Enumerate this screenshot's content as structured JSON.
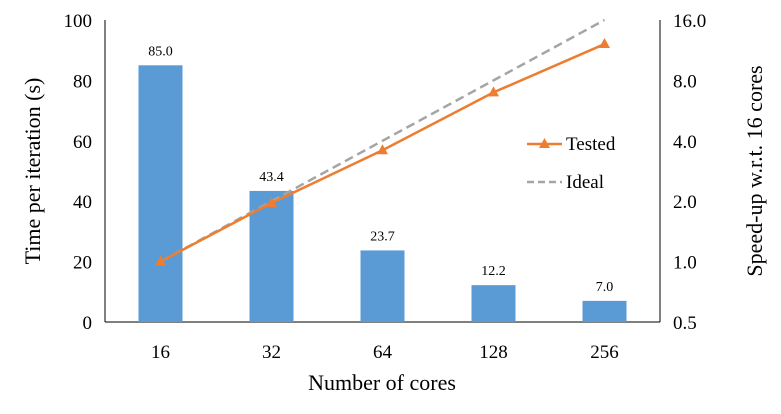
{
  "chart_data": {
    "type": "bar+line",
    "categories": [
      "16",
      "32",
      "64",
      "128",
      "256"
    ],
    "xlabel": "Number of cores",
    "ylabel_left": "Time per iteration (s)",
    "ylabel_right": "Speed-up w.r.t. 16 cores",
    "ylim_left": [
      0,
      100
    ],
    "left_ticks": [
      "0",
      "20",
      "40",
      "60",
      "80",
      "100"
    ],
    "ylim_right": [
      0.5,
      16.0
    ],
    "right_scale": "log2",
    "right_ticks": [
      "0.5",
      "1.0",
      "2.0",
      "4.0",
      "8.0",
      "16.0"
    ],
    "bars": {
      "values": [
        85.0,
        43.4,
        23.7,
        12.2,
        7.0
      ],
      "labels": [
        "85.0",
        "43.4",
        "23.7",
        "12.2",
        "7.0"
      ],
      "color": "#5b9bd5"
    },
    "series": [
      {
        "name": "Tested",
        "values": [
          1.0,
          1.96,
          3.59,
          6.97,
          12.14
        ],
        "color": "#ed7d31",
        "marker": "triangle",
        "style": "solid"
      },
      {
        "name": "Ideal",
        "values": [
          1,
          2,
          4,
          8,
          16
        ],
        "color": "#a5a5a5",
        "style": "dashed"
      }
    ],
    "legend": "right, inside",
    "grid": false
  }
}
